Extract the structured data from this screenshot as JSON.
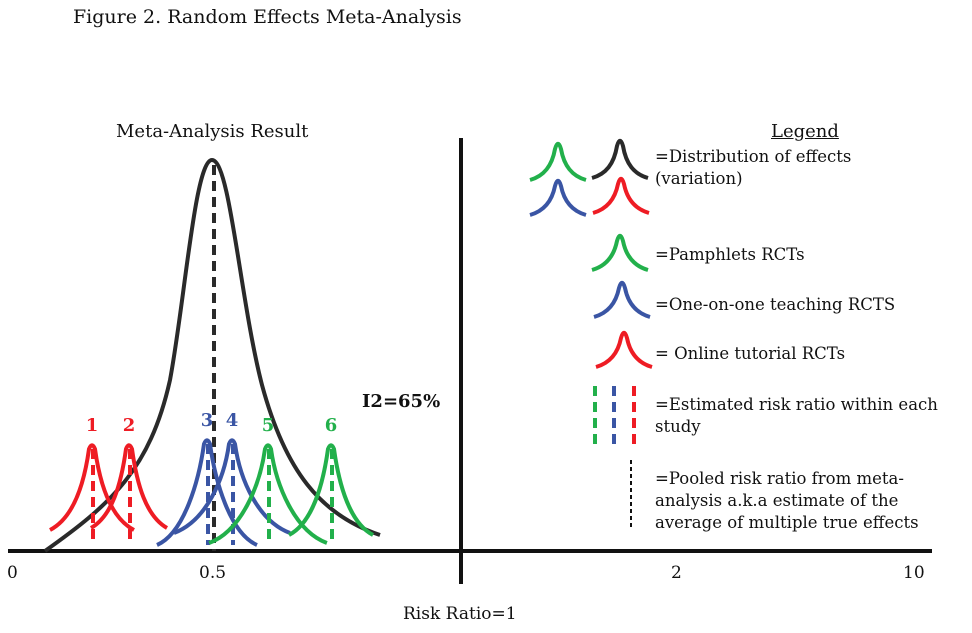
{
  "figure": {
    "title": "Figure 2. Random Effects Meta-Analysis",
    "result_title": "Meta-Analysis Result",
    "heterogeneity_label": "I2=65%"
  },
  "colors": {
    "pamphlets": "#22b04b",
    "one_on_one": "#3a55a4",
    "online": "#ee1c24",
    "pooled": "#2a2a2a"
  },
  "chart_data": {
    "type": "diagram",
    "title": "Figure 2. Random Effects Meta-Analysis",
    "xlabel": "Risk Ratio=1",
    "x_ticks": [
      "0",
      "0.5",
      "2",
      "10"
    ],
    "null_line_value": 1,
    "heterogeneity": "I2=65%",
    "pooled_estimate": 0.5,
    "studies": [
      {
        "label": "1",
        "group": "online",
        "estimate_approx": 0.21
      },
      {
        "label": "2",
        "group": "online",
        "estimate_approx": 0.28
      },
      {
        "label": "3",
        "group": "one_on_one",
        "estimate_approx": 0.48
      },
      {
        "label": "4",
        "group": "one_on_one",
        "estimate_approx": 0.54
      },
      {
        "label": "5",
        "group": "pamphlets",
        "estimate_approx": 0.63
      },
      {
        "label": "6",
        "group": "pamphlets",
        "estimate_approx": 0.79
      }
    ]
  },
  "axis": {
    "ticks": [
      {
        "label": "0"
      },
      {
        "label": "0.5"
      },
      {
        "label": "2"
      },
      {
        "label": "10"
      }
    ],
    "xlabel": "Risk Ratio=1"
  },
  "legend": {
    "title": "Legend",
    "items": [
      {
        "key": "distribution",
        "lines": [
          "=Distribution of effects",
          "(variation)"
        ]
      },
      {
        "key": "pamphlets",
        "lines": [
          "=Pamphlets RCTs"
        ]
      },
      {
        "key": "one_on_one",
        "lines": [
          "=One-on-one teaching RCTS"
        ]
      },
      {
        "key": "online",
        "lines": [
          "= Online tutorial RCTs"
        ]
      },
      {
        "key": "estimate",
        "lines": [
          "=Estimated risk ratio within each",
          "study"
        ]
      },
      {
        "key": "pooled",
        "lines": [
          "=Pooled risk ratio from meta-",
          "analysis a.k.a estimate of the",
          "average of multiple true effects"
        ]
      }
    ]
  }
}
